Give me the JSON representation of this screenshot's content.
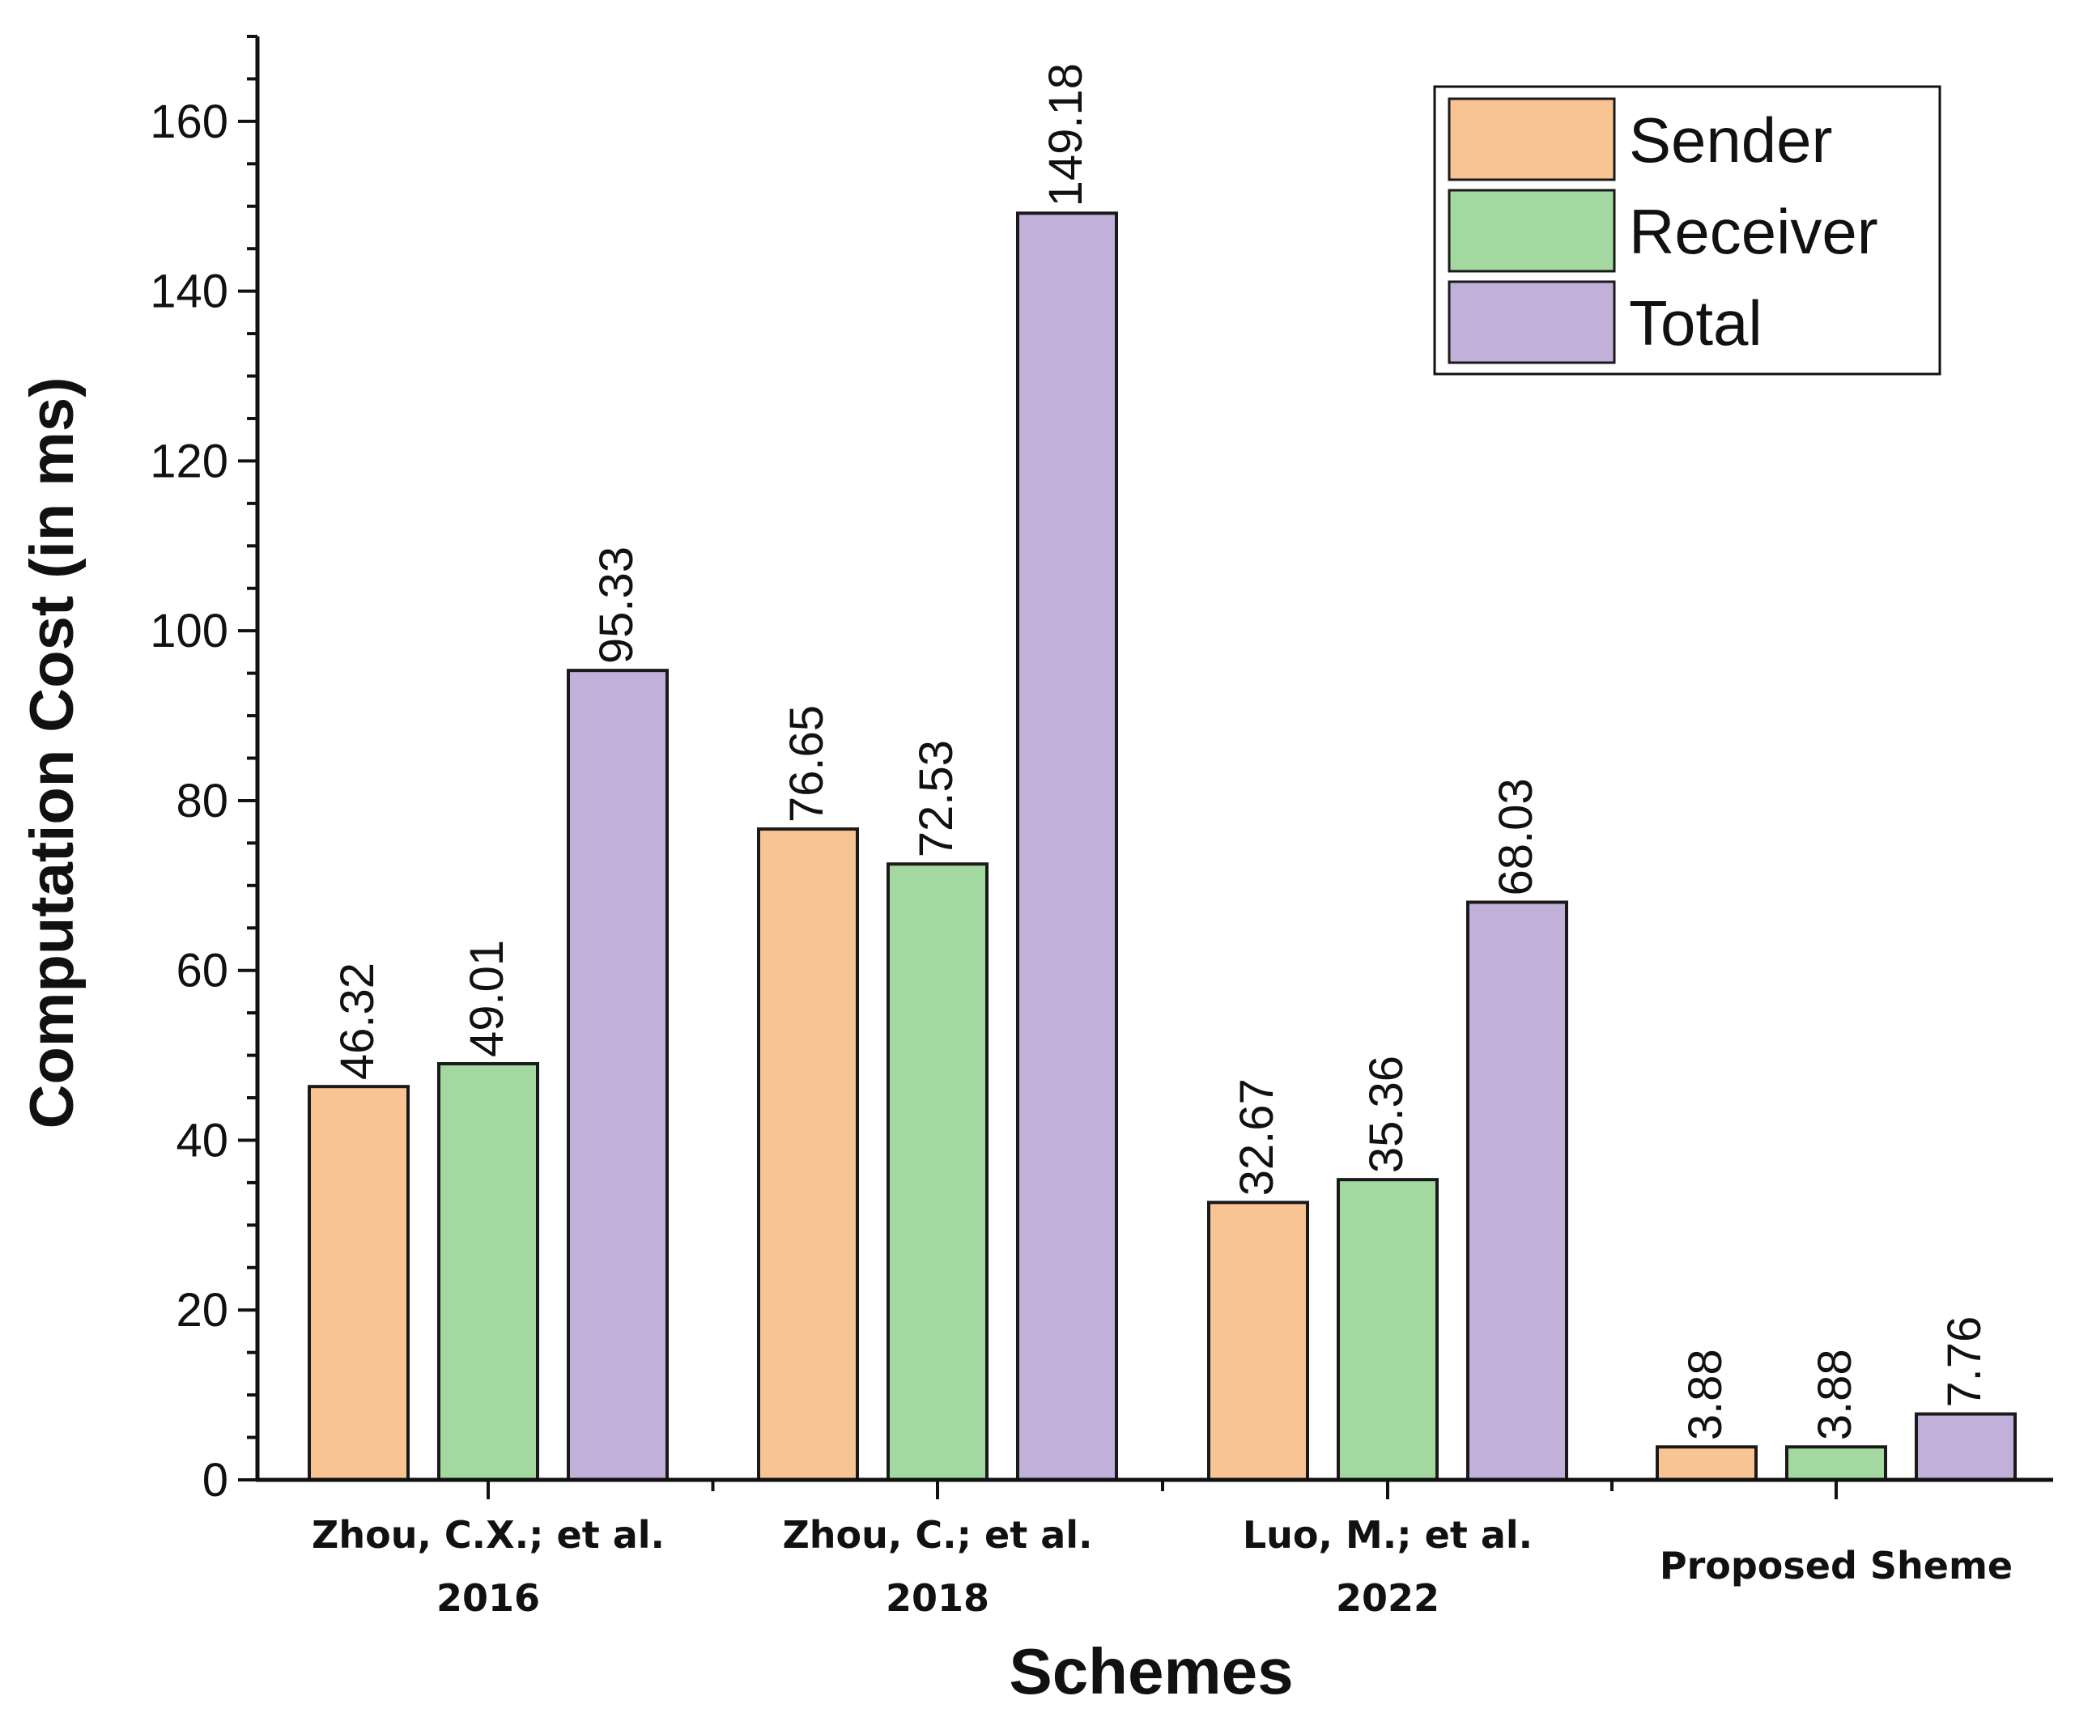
{
  "chart_data": {
    "type": "bar",
    "title": "",
    "xlabel": "Schemes",
    "ylabel": "Computation Cost (in ms)",
    "ylim": [
      0,
      170
    ],
    "yticks": [
      0,
      20,
      40,
      60,
      80,
      100,
      120,
      140,
      160
    ],
    "minor_tick_step": 5,
    "grid": false,
    "legend_position": "top-right",
    "categories": [
      [
        "Zhou, C.X.; et al.",
        "2016"
      ],
      [
        "Zhou, C.; et al.",
        "2018"
      ],
      [
        "Luo, M.; et al.",
        "2022"
      ],
      [
        "Proposed Sheme"
      ]
    ],
    "series": [
      {
        "name": "Sender",
        "color": "#F9C494",
        "values": [
          46.32,
          76.65,
          32.67,
          3.88
        ]
      },
      {
        "name": "Receiver",
        "color": "#A3D9A0",
        "values": [
          49.01,
          72.53,
          35.36,
          3.88
        ]
      },
      {
        "name": "Total",
        "color": "#C2B0DA",
        "values": [
          95.33,
          149.18,
          68.03,
          7.76
        ]
      }
    ],
    "value_labels": [
      [
        "46.32",
        "76.65",
        "32.67",
        "3.88"
      ],
      [
        "49.01",
        "72.53",
        "35.36",
        "3.88"
      ],
      [
        "95.33",
        "149.18",
        "68.03",
        "7.76"
      ]
    ]
  }
}
